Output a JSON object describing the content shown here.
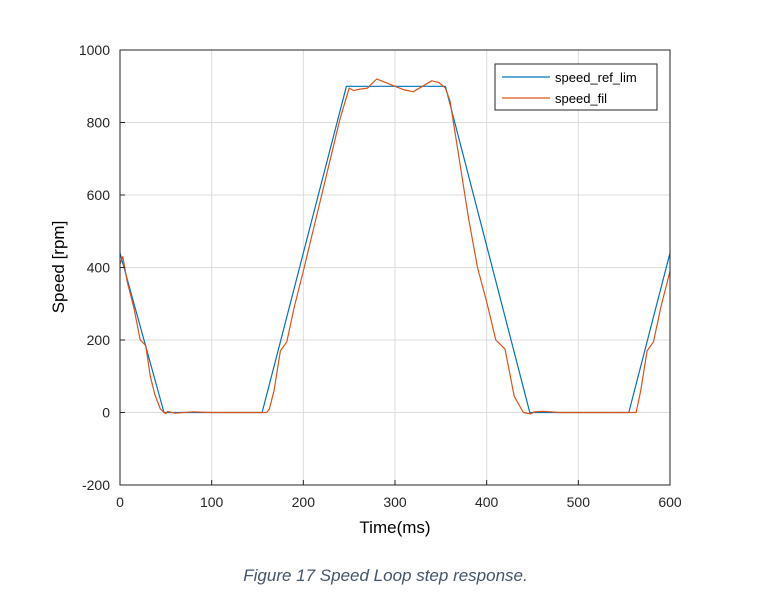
{
  "chart_data": {
    "type": "line",
    "title": "",
    "xlabel": "Time(ms)",
    "ylabel": "Speed [rpm]",
    "xlim": [
      0,
      600
    ],
    "ylim": [
      -200,
      1000
    ],
    "xticks": [
      "0",
      "100",
      "200",
      "300",
      "400",
      "500",
      "600"
    ],
    "yticks": [
      "-200",
      "0",
      "200",
      "400",
      "600",
      "800",
      "1000"
    ],
    "grid": true,
    "legend_position": "top-right",
    "series": [
      {
        "name": "speed_ref_lim",
        "color": "#0072bd",
        "x": [
          0,
          48,
          155,
          247,
          355,
          447,
          555,
          600
        ],
        "y": [
          440,
          0,
          0,
          900,
          900,
          0,
          0,
          440
        ]
      },
      {
        "name": "speed_fil",
        "color": "#d95319",
        "x": [
          0,
          3,
          8,
          15,
          22,
          28,
          33,
          38,
          44,
          48,
          50,
          52,
          60,
          80,
          100,
          130,
          155,
          160,
          163,
          168,
          175,
          182,
          190,
          200,
          220,
          240,
          250,
          255,
          262,
          270,
          280,
          290,
          300,
          310,
          320,
          330,
          340,
          348,
          355,
          360,
          370,
          380,
          390,
          400,
          410,
          420,
          425,
          430,
          440,
          448,
          452,
          460,
          470,
          480,
          500,
          520,
          540,
          563,
          568,
          575,
          582,
          590,
          600
        ],
        "y": [
          410,
          430,
          360,
          290,
          200,
          185,
          100,
          50,
          10,
          0,
          -3,
          3,
          -2,
          2,
          0,
          0,
          0,
          0,
          10,
          60,
          170,
          195,
          290,
          390,
          600,
          810,
          895,
          888,
          892,
          895,
          920,
          910,
          900,
          890,
          885,
          900,
          915,
          910,
          895,
          860,
          700,
          540,
          400,
          305,
          200,
          175,
          110,
          45,
          0,
          -4,
          2,
          3,
          2,
          0,
          0,
          0,
          0,
          0,
          60,
          170,
          195,
          290,
          390
        ]
      }
    ]
  },
  "caption": "Figure 17 Speed Loop step response."
}
